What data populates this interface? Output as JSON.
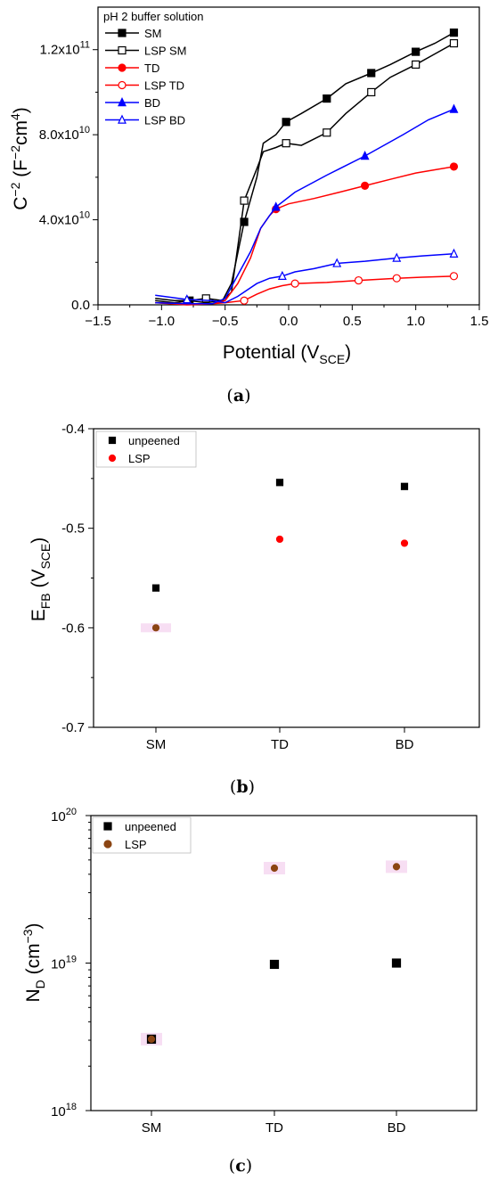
{
  "chart_data": [
    {
      "type": "line",
      "panel_label": "a",
      "legend_title": "pH 2 buffer solution",
      "legend_position": "top-left",
      "xlabel": "Potential (V",
      "xlabel_sub": "SCE",
      "xlabel_end": ")",
      "ylabel_parts": [
        "C",
        "−2",
        " (F",
        "−2",
        "cm",
        "4",
        ")"
      ],
      "xlim": [
        -1.5,
        1.5
      ],
      "ylim": [
        0,
        140000000000.0
      ],
      "x_ticks": [
        "−1.5",
        "−1.0",
        "−0.5",
        "0.0",
        "0.5",
        "1.0",
        "1.5"
      ],
      "y_ticks": [
        {
          "value": 0,
          "label": "0.0",
          "exp": ""
        },
        {
          "value": 40000000000.0,
          "label": "4.0x10",
          "exp": "10"
        },
        {
          "value": 80000000000.0,
          "label": "8.0x10",
          "exp": "10"
        },
        {
          "value": 120000000000.0,
          "label": "1.2x10",
          "exp": "11"
        }
      ],
      "series": [
        {
          "name": "SM",
          "color": "#000000",
          "marker": "square",
          "filled": true,
          "x": [
            -1.05,
            -0.9,
            -0.78,
            -0.65,
            -0.52,
            -0.45,
            -0.35,
            -0.25,
            -0.2,
            -0.1,
            -0.02,
            0.1,
            0.3,
            0.45,
            0.65,
            0.8,
            1.0,
            1.15,
            1.3
          ],
          "y": [
            2000000000.0,
            1000000000.0,
            2000000000.0,
            1000000000.0,
            2000000000.0,
            10000000000.0,
            39000000000.0,
            60000000000.0,
            76000000000.0,
            80000000000.0,
            86000000000.0,
            90000000000.0,
            97000000000.0,
            104000000000.0,
            109000000000.0,
            113000000000.0,
            119000000000.0,
            123000000000.0,
            128000000000.0
          ],
          "markers_at": [
            2,
            6,
            10,
            12,
            14,
            16,
            18
          ]
        },
        {
          "name": "LSP SM",
          "color": "#000000",
          "marker": "square",
          "filled": false,
          "x": [
            -1.05,
            -0.9,
            -0.78,
            -0.65,
            -0.52,
            -0.45,
            -0.35,
            -0.25,
            -0.2,
            -0.1,
            -0.02,
            0.1,
            0.3,
            0.45,
            0.65,
            0.8,
            1.0,
            1.15,
            1.3
          ],
          "y": [
            3000000000.0,
            2000000000.0,
            2000000000.0,
            3000000000.0,
            2000000000.0,
            6000000000.0,
            49000000000.0,
            64000000000.0,
            72000000000.0,
            74000000000.0,
            76000000000.0,
            75000000000.0,
            81000000000.0,
            90000000000.0,
            100000000000.0,
            107000000000.0,
            113000000000.0,
            118000000000.0,
            123000000000.0
          ],
          "markers_at": [
            3,
            6,
            10,
            12,
            14,
            16,
            18
          ]
        },
        {
          "name": "TD",
          "color": "#ff0000",
          "marker": "circle",
          "filled": true,
          "x": [
            -1.05,
            -0.8,
            -0.6,
            -0.5,
            -0.4,
            -0.3,
            -0.22,
            -0.15,
            -0.1,
            0.0,
            0.2,
            0.4,
            0.6,
            0.8,
            1.0,
            1.15,
            1.3
          ],
          "y": [
            1000000000.0,
            0.0,
            500000000.0,
            2000000000.0,
            10000000000.0,
            22000000000.0,
            36000000000.0,
            42000000000.0,
            45000000000.0,
            47500000000.0,
            50000000000.0,
            53000000000.0,
            56000000000.0,
            59000000000.0,
            62000000000.0,
            63500000000.0,
            65000000000.0
          ],
          "markers_at": [
            8,
            12,
            16
          ]
        },
        {
          "name": "LSP TD",
          "color": "#ff0000",
          "marker": "circle",
          "filled": false,
          "x": [
            -1.05,
            -0.8,
            -0.6,
            -0.5,
            -0.35,
            -0.25,
            -0.15,
            -0.05,
            0.05,
            0.3,
            0.55,
            0.85,
            1.05,
            1.3
          ],
          "y": [
            1000000000.0,
            500000000.0,
            500000000.0,
            1000000000.0,
            2000000000.0,
            5000000000.0,
            7500000000.0,
            9000000000.0,
            10000000000.0,
            10500000000.0,
            11500000000.0,
            12500000000.0,
            13000000000.0,
            13500000000.0
          ],
          "markers_at": [
            4,
            8,
            10,
            11,
            13
          ]
        },
        {
          "name": "BD",
          "color": "#0000ff",
          "marker": "triangle",
          "filled": true,
          "x": [
            -1.05,
            -0.8,
            -0.6,
            -0.5,
            -0.4,
            -0.3,
            -0.22,
            -0.15,
            -0.1,
            0.05,
            0.3,
            0.6,
            0.9,
            1.1,
            1.3
          ],
          "y": [
            1000000000.0,
            500000000.0,
            500000000.0,
            3000000000.0,
            14000000000.0,
            25000000000.0,
            36000000000.0,
            42000000000.0,
            46000000000.0,
            53000000000.0,
            61000000000.0,
            70000000000.0,
            80000000000.0,
            87000000000.0,
            92000000000.0
          ],
          "markers_at": [
            8,
            11,
            14
          ]
        },
        {
          "name": "LSP BD",
          "color": "#0000ff",
          "marker": "triangle",
          "filled": false,
          "x": [
            -1.05,
            -0.8,
            -0.6,
            -0.5,
            -0.4,
            -0.25,
            -0.15,
            -0.05,
            0.05,
            0.2,
            0.38,
            0.6,
            0.85,
            1.05,
            1.3
          ],
          "y": [
            4500000000.0,
            2500000000.0,
            2000000000.0,
            1000000000.0,
            4000000000.0,
            10000000000.0,
            12500000000.0,
            13500000000.0,
            15500000000.0,
            17000000000.0,
            19500000000.0,
            20500000000.0,
            22000000000.0,
            23000000000.0,
            24000000000.0
          ],
          "markers_at": [
            1,
            7,
            10,
            12,
            14
          ]
        }
      ]
    },
    {
      "type": "scatter",
      "panel_label": "b",
      "legend_position": "top-left",
      "categories": [
        "SM",
        "TD",
        "BD"
      ],
      "ylabel": "E",
      "ylabel_sub": "FB",
      "ylabel_mid": " (V",
      "ylabel_sub2": "SCE",
      "ylabel_end": ")",
      "ylim": [
        -0.7,
        -0.4
      ],
      "y_ticks": [
        "-0.7",
        "-0.6",
        "-0.5",
        "-0.4"
      ],
      "y_tick_values": [
        -0.7,
        -0.6,
        -0.5,
        -0.4
      ],
      "series": [
        {
          "name": "unpeened",
          "color": "#000000",
          "marker": "square",
          "values": [
            -0.56,
            -0.454,
            -0.458
          ]
        },
        {
          "name": "LSP",
          "color": "#ff0000",
          "marker": "circle",
          "values": [
            -0.6,
            -0.511,
            -0.515
          ],
          "first_color": "#8b4513"
        }
      ]
    },
    {
      "type": "scatter",
      "panel_label": "c",
      "legend_position": "top-left",
      "categories": [
        "SM",
        "TD",
        "BD"
      ],
      "ylabel": "N",
      "ylabel_sub": "D",
      "ylabel_mid": " (cm",
      "ylabel_sup": "−3",
      "ylabel_end": ")",
      "yscale": "log",
      "ylim": [
        1e+18,
        1e+20
      ],
      "y_ticks": [
        {
          "value": 1e+18,
          "label": "10",
          "exp": "18"
        },
        {
          "value": 1e+19,
          "label": "10",
          "exp": "19"
        },
        {
          "value": 1e+20,
          "label": "10",
          "exp": "20"
        }
      ],
      "series": [
        {
          "name": "unpeened",
          "color": "#000000",
          "marker": "square",
          "values": [
            3.05e+18,
            9.8e+18,
            1e+19
          ]
        },
        {
          "name": "LSP",
          "color": "#8b4513",
          "marker": "circle",
          "values": [
            3.05e+18,
            4.4e+19,
            4.5e+19
          ]
        }
      ]
    }
  ]
}
